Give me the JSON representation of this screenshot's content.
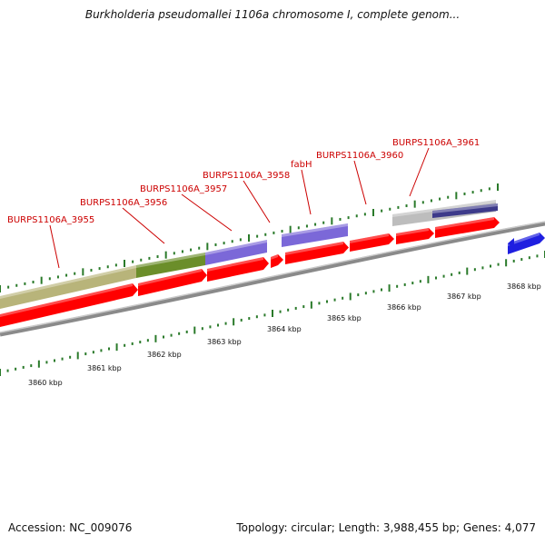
{
  "title": "Burkholderia pseudomallei 1106a chromosome I, complete genom...",
  "footer": {
    "accession": "Accession: NC_009076",
    "summary": "Topology: circular; Length: 3,988,455 bp; Genes: 4,077"
  },
  "scale": {
    "unit_labels": [
      "3860 kbp",
      "3861 kbp",
      "3862 kbp",
      "3863 kbp",
      "3864 kbp",
      "3865 kbp",
      "3866 kbp",
      "3867 kbp",
      "3868 kbp"
    ]
  },
  "gene_labels": [
    "BURPS1106A_3955",
    "BURPS1106A_3956",
    "BURPS1106A_3957",
    "BURPS1106A_3958",
    "fabH",
    "BURPS1106A_3960",
    "BURPS1106A_3961"
  ],
  "colors": {
    "cds": "#ff0000",
    "gene_label": "#cc0000",
    "backbone": "#8a8a8a",
    "tick": "#2a7a2a",
    "olive_feature": "#b8b47a",
    "green_feature": "#6b8e2a",
    "purple_feature": "#7b68d8",
    "gray_feature": "#bdbdbd",
    "navy_feature": "#3d3a8a",
    "blue_feature": "#1f1fe0"
  }
}
